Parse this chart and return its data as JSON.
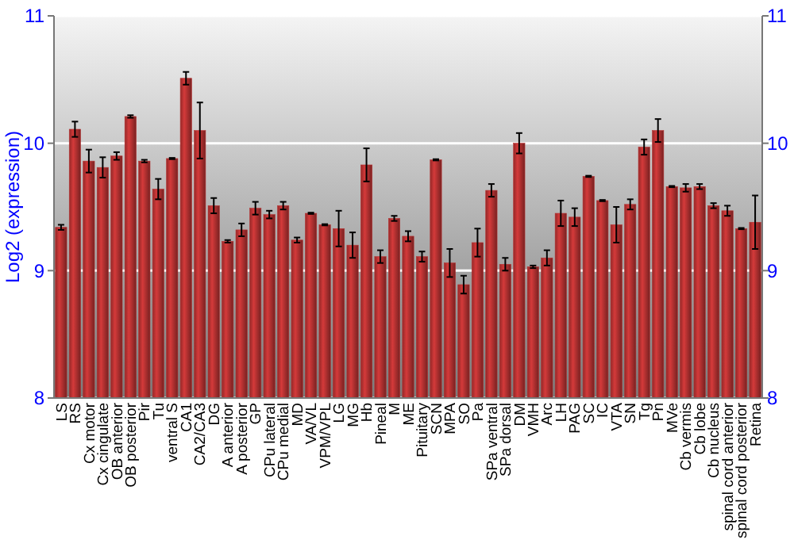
{
  "chart_data": {
    "type": "bar",
    "ylabel": "Log2 (expression)",
    "categories": [
      "LS",
      "RS",
      "Cx motor",
      "Cx cingulate",
      "OB anterior",
      "OB posterior",
      "Pir",
      "Tu",
      "ventral S",
      "CA1",
      "CA2/CA3",
      "DG",
      "A anterior",
      "A posterior",
      "GP",
      "CPu lateral",
      "CPu medial",
      "MD",
      "VA/VL",
      "VPM/VPL",
      "LG",
      "MG",
      "Hb",
      "Pineal",
      "M",
      "ME",
      "Pituitary",
      "SCN",
      "MPA",
      "SO",
      "Pa",
      "SPa ventral",
      "SPa dorsal",
      "DM",
      "VMH",
      "Arc",
      "LH",
      "PAG",
      "SC",
      "IC",
      "VTA",
      "SN",
      "Tg",
      "Pn",
      "MVe",
      "Cb vermis",
      "Cb lobe",
      "Cb nucleus",
      "spinal cord anterior",
      "spinal cord posterior",
      "Retina"
    ],
    "values": [
      9.34,
      10.11,
      9.86,
      9.81,
      9.9,
      10.21,
      9.86,
      9.64,
      9.88,
      10.51,
      10.1,
      9.51,
      9.23,
      9.32,
      9.49,
      9.44,
      9.51,
      9.24,
      9.45,
      9.36,
      9.33,
      9.2,
      9.83,
      9.11,
      9.41,
      9.27,
      9.11,
      9.87,
      9.06,
      8.89,
      9.22,
      9.63,
      9.05,
      10.0,
      9.03,
      9.1,
      9.45,
      9.42,
      9.74,
      9.55,
      9.36,
      9.52,
      9.97,
      10.1,
      9.66,
      9.65,
      9.66,
      9.51,
      9.47,
      9.33,
      9.38
    ],
    "errors": [
      0.02,
      0.06,
      0.09,
      0.08,
      0.03,
      0.01,
      0.01,
      0.08,
      0.005,
      0.05,
      0.22,
      0.06,
      0.01,
      0.05,
      0.05,
      0.03,
      0.03,
      0.02,
      0.005,
      0.005,
      0.14,
      0.1,
      0.13,
      0.05,
      0.02,
      0.04,
      0.04,
      0.005,
      0.11,
      0.07,
      0.11,
      0.05,
      0.05,
      0.08,
      0.01,
      0.06,
      0.1,
      0.07,
      0.005,
      0.005,
      0.14,
      0.04,
      0.06,
      0.09,
      0.005,
      0.03,
      0.02,
      0.02,
      0.04,
      0.005,
      0.21
    ],
    "color": "#b83232",
    "ylim": [
      8,
      11
    ],
    "yticks": [
      8,
      9,
      10,
      11
    ],
    "y2lim": [
      8,
      11
    ],
    "y2ticks": [
      8,
      9,
      10,
      11
    ],
    "grid": "y"
  }
}
